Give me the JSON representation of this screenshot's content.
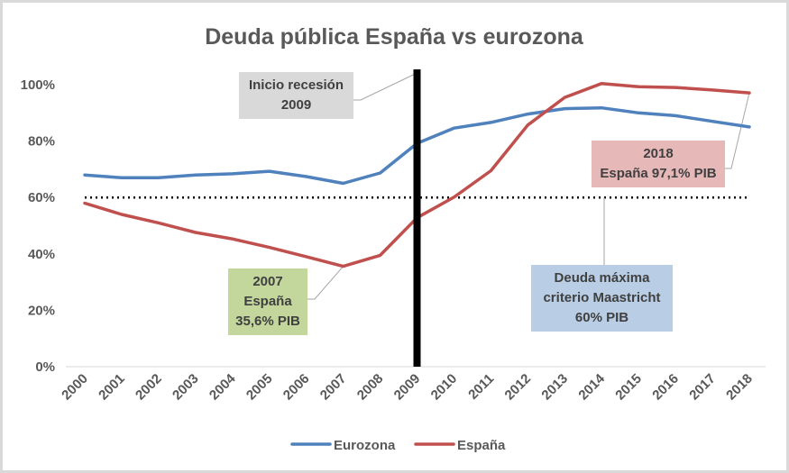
{
  "chart_data": {
    "type": "line",
    "title": "Deuda pública España vs eurozona",
    "xlabel": "",
    "ylabel": "",
    "x": [
      "2000",
      "2001",
      "2002",
      "2003",
      "2004",
      "2005",
      "2006",
      "2007",
      "2008",
      "2009",
      "2010",
      "2011",
      "2012",
      "2013",
      "2014",
      "2015",
      "2016",
      "2017",
      "2018"
    ],
    "ylim": [
      0,
      100
    ],
    "yticks": [
      "0%",
      "20%",
      "40%",
      "60%",
      "80%",
      "100%"
    ],
    "grid": false,
    "legend": "bottom",
    "series": [
      {
        "name": "Eurozona",
        "color": "#4f81bd",
        "values": [
          68.0,
          67.0,
          67.0,
          68.0,
          68.4,
          69.3,
          67.4,
          65.0,
          68.7,
          79.2,
          84.6,
          86.6,
          89.6,
          91.5,
          91.8,
          90.0,
          89.0,
          87.0,
          85.0
        ]
      },
      {
        "name": "España",
        "color": "#c0504d",
        "values": [
          58.0,
          54.0,
          51.0,
          47.6,
          45.3,
          42.3,
          39.0,
          35.6,
          39.5,
          52.8,
          60.1,
          69.5,
          85.7,
          95.5,
          100.4,
          99.3,
          99.0,
          98.1,
          97.1
        ]
      }
    ],
    "reference_line": {
      "value": 60,
      "style": "dotted",
      "color": "#000000"
    },
    "vertical_marker": {
      "x": "2009",
      "color": "#000000"
    },
    "annotations": [
      {
        "id": "recession",
        "lines": [
          "Inicio recesión",
          "2009"
        ],
        "bg": "#d9d9d9",
        "target_x": "2009",
        "target_y": 100
      },
      {
        "id": "spain2018",
        "lines": [
          "2018",
          "España 97,1% PIB"
        ],
        "bg": "#e6b9b8",
        "target_x": "2018",
        "target_y": 97.1
      },
      {
        "id": "spain2007",
        "lines": [
          "2007",
          "España",
          "35,6% PIB"
        ],
        "bg": "#c3d69b",
        "target_x": "2007",
        "target_y": 35.6
      },
      {
        "id": "maastricht",
        "lines": [
          "Deuda máxima",
          "criterio Maastricht",
          "60% PIB"
        ],
        "bg": "#b9cde5",
        "target_x": "2014",
        "target_y": 60
      }
    ]
  }
}
